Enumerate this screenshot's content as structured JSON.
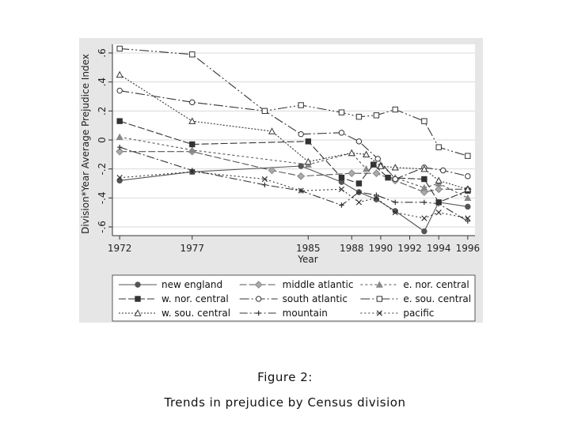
{
  "caption": {
    "figure_label": "Figure 2:",
    "title": "Trends in prejudice by Census division"
  },
  "chart_data": {
    "type": "line",
    "xlabel": "Year",
    "ylabel": "Division*Year Average Prejudice Index",
    "x_ticks": [
      1972,
      1977,
      1985,
      1988,
      1990,
      1992,
      1994,
      1996
    ],
    "y_ticks": [
      -0.6,
      -0.4,
      -0.2,
      0,
      0.2,
      0.4,
      0.6
    ],
    "y_tick_labels": [
      "-.6",
      "-.4",
      "-.2",
      "0",
      ".2",
      ".4",
      ".6"
    ],
    "xlim": [
      1971.5,
      1996.5
    ],
    "ylim": [
      -0.66,
      0.66
    ],
    "grid": true,
    "legend_position": "bottom",
    "series": [
      {
        "name": "new england",
        "marker": "circle-filled",
        "dash": "",
        "color": "#555555",
        "x": [
          1972,
          1977,
          1984.5,
          1987.3,
          1988.5,
          1989.7,
          1991,
          1993,
          1994,
          1996
        ],
        "y": [
          -0.28,
          -0.22,
          -0.18,
          -0.29,
          -0.36,
          -0.41,
          -0.49,
          -0.63,
          -0.43,
          -0.46
        ]
      },
      {
        "name": "middle atlantic",
        "marker": "diamond-filled",
        "dash": "9,3",
        "color": "#555555",
        "x": [
          1972,
          1977,
          1982.5,
          1984.5,
          1988,
          1989.7,
          1991,
          1993,
          1994,
          1996
        ],
        "y": [
          -0.08,
          -0.08,
          -0.21,
          -0.25,
          -0.23,
          -0.23,
          -0.28,
          -0.36,
          -0.34,
          -0.34
        ]
      },
      {
        "name": "e. nor. central",
        "marker": "triangle-filled",
        "dash": "3,3",
        "color": "#555555",
        "x": [
          1972,
          1977,
          1985,
          1988,
          1989,
          1990,
          1991,
          1993,
          1994,
          1996
        ],
        "y": [
          0.02,
          -0.07,
          -0.17,
          -0.09,
          -0.2,
          -0.17,
          -0.26,
          -0.33,
          -0.3,
          -0.4
        ]
      },
      {
        "name": "w. nor. central",
        "marker": "square-filled",
        "dash": "9,3",
        "color": "#333333",
        "x": [
          1972,
          1977,
          1985,
          1987.3,
          1988.5,
          1989.5,
          1990.5,
          1993,
          1994,
          1996
        ],
        "y": [
          0.13,
          -0.03,
          -0.01,
          -0.26,
          -0.3,
          -0.17,
          -0.26,
          -0.27,
          -0.43,
          -0.35
        ]
      },
      {
        "name": "south atlantic",
        "marker": "circle-open",
        "dash": "12,3,2,3",
        "color": "#333333",
        "x": [
          1972,
          1977,
          1982,
          1984.5,
          1987.3,
          1988.5,
          1989.8,
          1991,
          1993,
          1994.3,
          1996
        ],
        "y": [
          0.34,
          0.26,
          0.2,
          0.04,
          0.05,
          -0.01,
          -0.13,
          -0.27,
          -0.19,
          -0.21,
          -0.25
        ]
      },
      {
        "name": "e. sou. central",
        "marker": "square-open",
        "dash": "12,3,2,3,2,3",
        "color": "#333333",
        "x": [
          1972,
          1977,
          1982,
          1984.5,
          1987.3,
          1988.5,
          1989.7,
          1991,
          1993,
          1994,
          1996
        ],
        "y": [
          0.63,
          0.59,
          0.2,
          0.24,
          0.19,
          0.16,
          0.17,
          0.21,
          0.13,
          -0.05,
          -0.11
        ]
      },
      {
        "name": "w. sou. central",
        "marker": "triangle-open",
        "dash": "2,2",
        "color": "#333333",
        "x": [
          1972,
          1977,
          1982.5,
          1985,
          1988,
          1989,
          1990,
          1991,
          1993,
          1994,
          1996
        ],
        "y": [
          0.45,
          0.13,
          0.06,
          -0.15,
          -0.09,
          -0.1,
          -0.18,
          -0.19,
          -0.2,
          -0.28,
          -0.34
        ]
      },
      {
        "name": "mountain",
        "marker": "plus",
        "dash": "10,3,2,3",
        "color": "#333333",
        "x": [
          1972,
          1977,
          1982,
          1984.5,
          1987.3,
          1988.5,
          1989.7,
          1991,
          1993,
          1994,
          1996
        ],
        "y": [
          -0.05,
          -0.21,
          -0.31,
          -0.35,
          -0.45,
          -0.36,
          -0.38,
          -0.43,
          -0.43,
          -0.44,
          -0.56
        ]
      },
      {
        "name": "pacific",
        "marker": "x",
        "dash": "2,3",
        "color": "#333333",
        "x": [
          1972,
          1977,
          1982,
          1984.5,
          1987.3,
          1988.5,
          1989.7,
          1991,
          1993,
          1994,
          1996
        ],
        "y": [
          -0.26,
          -0.22,
          -0.27,
          -0.35,
          -0.34,
          -0.43,
          -0.4,
          -0.5,
          -0.54,
          -0.5,
          -0.54
        ]
      }
    ]
  }
}
